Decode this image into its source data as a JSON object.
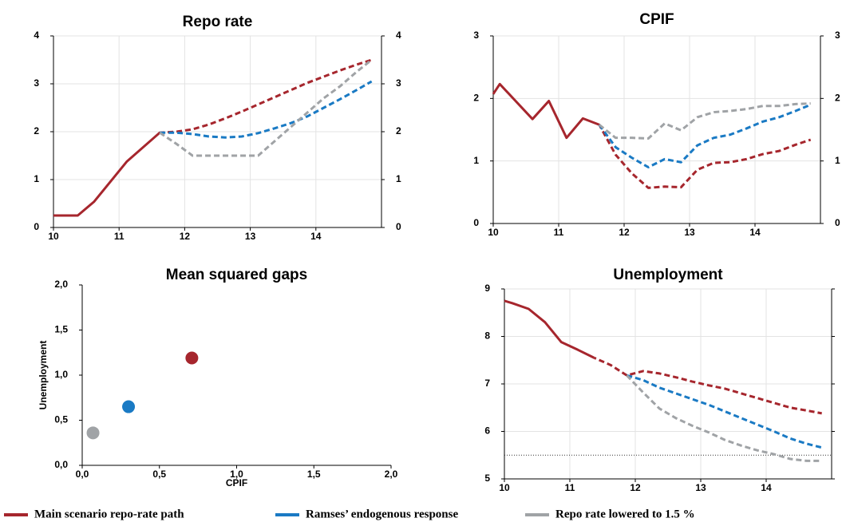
{
  "chart_data": [
    {
      "type": "line",
      "title": "Repo rate",
      "xlim": [
        10,
        15
      ],
      "xticks": [
        10,
        11,
        12,
        13,
        14
      ],
      "ylim": [
        0,
        4
      ],
      "yticks": [
        0,
        1,
        2,
        3,
        4
      ],
      "grid": true,
      "right_labels": true,
      "dash_from": 11.62,
      "series": [
        {
          "name": "Main scenario repo-rate path",
          "color": "#a6262d",
          "x": [
            10,
            10.37,
            10.62,
            11.12,
            11.62,
            11.87,
            12.12,
            12.37,
            12.62,
            12.87,
            13.12,
            13.37,
            13.62,
            13.87,
            14.12,
            14.37,
            14.62,
            14.85
          ],
          "values": [
            0.25,
            0.25,
            0.54,
            1.38,
            1.98,
            2.0,
            2.05,
            2.15,
            2.28,
            2.42,
            2.57,
            2.72,
            2.87,
            3.02,
            3.15,
            3.28,
            3.4,
            3.5
          ]
        },
        {
          "name": "Ramses’ endogenous response",
          "color": "#1a7ac4",
          "x": [
            11.62,
            11.87,
            12.12,
            12.37,
            12.62,
            12.87,
            13.12,
            13.37,
            13.62,
            13.87,
            14.12,
            14.37,
            14.62,
            14.85
          ],
          "values": [
            1.98,
            1.98,
            1.95,
            1.9,
            1.88,
            1.9,
            1.97,
            2.07,
            2.18,
            2.32,
            2.5,
            2.68,
            2.87,
            3.05
          ]
        },
        {
          "name": "Repo rate lowered to 1.5 %",
          "color": "#a0a3a6",
          "x": [
            11.62,
            11.87,
            12.12,
            12.37,
            12.62,
            12.87,
            13.12,
            13.37,
            13.62,
            13.87,
            14.12,
            14.37,
            14.62,
            14.85
          ],
          "values": [
            1.98,
            1.75,
            1.5,
            1.5,
            1.5,
            1.5,
            1.5,
            1.8,
            2.1,
            2.4,
            2.7,
            2.95,
            3.25,
            3.5
          ]
        }
      ]
    },
    {
      "type": "line",
      "title": "CPIF",
      "xlim": [
        10,
        15
      ],
      "xticks": [
        10,
        11,
        12,
        13,
        14
      ],
      "ylim": [
        0,
        3
      ],
      "yticks": [
        0,
        1,
        2,
        3
      ],
      "grid": true,
      "right_labels": true,
      "dash_from": 11.62,
      "series": [
        {
          "color": "#a6262d",
          "x": [
            10,
            10.1,
            10.6,
            10.85,
            11.12,
            11.37,
            11.62,
            11.87,
            12.12,
            12.37,
            12.62,
            12.87,
            13.12,
            13.37,
            13.62,
            13.87,
            14.12,
            14.37,
            14.62,
            14.85
          ],
          "values": [
            2.07,
            2.23,
            1.67,
            1.96,
            1.37,
            1.68,
            1.58,
            1.1,
            0.8,
            0.57,
            0.59,
            0.58,
            0.86,
            0.97,
            0.98,
            1.03,
            1.11,
            1.16,
            1.26,
            1.34
          ]
        },
        {
          "color": "#1a7ac4",
          "x": [
            11.62,
            11.87,
            12.12,
            12.37,
            12.62,
            12.87,
            13.12,
            13.37,
            13.62,
            13.87,
            14.12,
            14.37,
            14.62,
            14.85
          ],
          "values": [
            1.58,
            1.22,
            1.05,
            0.9,
            1.03,
            0.98,
            1.25,
            1.37,
            1.42,
            1.52,
            1.63,
            1.7,
            1.8,
            1.9
          ]
        },
        {
          "color": "#a0a3a6",
          "x": [
            11.62,
            11.87,
            12.12,
            12.37,
            12.62,
            12.87,
            13.12,
            13.37,
            13.62,
            13.87,
            14.12,
            14.37,
            14.62,
            14.85
          ],
          "values": [
            1.58,
            1.37,
            1.37,
            1.36,
            1.6,
            1.49,
            1.7,
            1.78,
            1.8,
            1.83,
            1.88,
            1.88,
            1.91,
            1.92
          ]
        }
      ]
    },
    {
      "type": "scatter",
      "title": "Mean squared gaps",
      "x_label": "CPIF",
      "y_label": "Unemployment",
      "xlim": [
        0,
        2
      ],
      "xticks": [
        {
          "value": 0,
          "label": "0,0"
        },
        {
          "value": 0.5,
          "label": "0,5"
        },
        {
          "value": 1,
          "label": "1,0"
        },
        {
          "value": 1.5,
          "label": "1,5"
        },
        {
          "value": 2,
          "label": "2,0"
        }
      ],
      "ylim": [
        0,
        2
      ],
      "yticks": [
        {
          "value": 0,
          "label": "0,0"
        },
        {
          "value": 0.5,
          "label": "0,5"
        },
        {
          "value": 1,
          "label": "1,0"
        },
        {
          "value": 1.5,
          "label": "1,5"
        },
        {
          "value": 2,
          "label": "2,0"
        }
      ],
      "x": [
        0.71,
        0.3,
        0.07
      ],
      "values": [
        1.19,
        0.65,
        0.36
      ],
      "colors": [
        "#a6262d",
        "#1a7ac4",
        "#a0a3a6"
      ]
    },
    {
      "type": "line",
      "title": "Unemployment",
      "xlim": [
        10,
        15
      ],
      "xticks": [
        10,
        11,
        12,
        13,
        14
      ],
      "ylim": [
        5,
        9
      ],
      "yticks": [
        5,
        6,
        7,
        8,
        9
      ],
      "grid": true,
      "right_labels": false,
      "dash_from": 11.37,
      "hline": 5.5,
      "series": [
        {
          "color": "#a6262d",
          "x": [
            10,
            10.12,
            10.37,
            10.62,
            10.87,
            11.12,
            11.37,
            11.62,
            11.87,
            12.12,
            12.37,
            12.62,
            12.87,
            13.12,
            13.37,
            13.62,
            13.87,
            14.12,
            14.37,
            14.62,
            14.85
          ],
          "values": [
            8.75,
            8.7,
            8.58,
            8.3,
            7.88,
            7.72,
            7.55,
            7.4,
            7.18,
            7.27,
            7.22,
            7.14,
            7.05,
            6.97,
            6.9,
            6.8,
            6.7,
            6.6,
            6.5,
            6.44,
            6.38
          ]
        },
        {
          "color": "#1a7ac4",
          "x": [
            11.87,
            12.12,
            12.37,
            12.62,
            12.87,
            13.12,
            13.37,
            13.62,
            13.87,
            14.12,
            14.37,
            14.62,
            14.85
          ],
          "values": [
            7.18,
            7.08,
            6.92,
            6.8,
            6.68,
            6.56,
            6.42,
            6.28,
            6.14,
            6.0,
            5.85,
            5.74,
            5.66
          ]
        },
        {
          "color": "#a0a3a6",
          "x": [
            11.87,
            12.12,
            12.37,
            12.62,
            12.87,
            13.12,
            13.37,
            13.62,
            13.87,
            14.12,
            14.37,
            14.62,
            14.85
          ],
          "values": [
            7.18,
            6.82,
            6.48,
            6.28,
            6.12,
            5.98,
            5.82,
            5.7,
            5.6,
            5.52,
            5.42,
            5.38,
            5.38
          ]
        }
      ]
    }
  ]
}
